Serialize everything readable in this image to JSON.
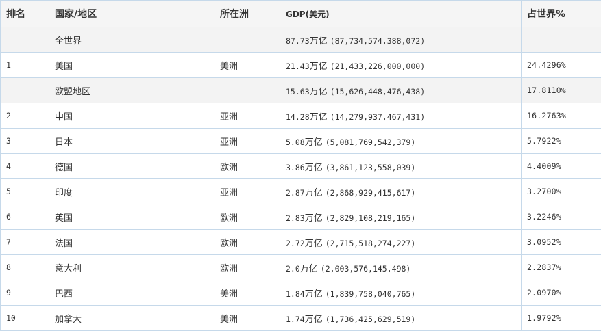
{
  "table": {
    "headers": {
      "rank": "排名",
      "country": "国家/地区",
      "continent": "所在洲",
      "gdp": "GDP(美元)",
      "share": "占世界%"
    },
    "rows": [
      {
        "rank": "",
        "country": "全世界",
        "continent": "",
        "gdp_short": "87.73",
        "gdp_unit": "万亿",
        "gdp_full": "(87,734,574,388,072)",
        "share": ""
      },
      {
        "rank": "1",
        "country": "美国",
        "continent": "美洲",
        "gdp_short": "21.43",
        "gdp_unit": "万亿",
        "gdp_full": "(21,433,226,000,000)",
        "share": "24.4296%"
      },
      {
        "rank": "",
        "country": "欧盟地区",
        "continent": "",
        "gdp_short": "15.63",
        "gdp_unit": "万亿",
        "gdp_full": "(15,626,448,476,438)",
        "share": "17.8110%"
      },
      {
        "rank": "2",
        "country": "中国",
        "continent": "亚洲",
        "gdp_short": "14.28",
        "gdp_unit": "万亿",
        "gdp_full": "(14,279,937,467,431)",
        "share": "16.2763%"
      },
      {
        "rank": "3",
        "country": "日本",
        "continent": "亚洲",
        "gdp_short": "5.08",
        "gdp_unit": "万亿",
        "gdp_full": "(5,081,769,542,379)",
        "share": "5.7922%"
      },
      {
        "rank": "4",
        "country": "德国",
        "continent": "欧洲",
        "gdp_short": "3.86",
        "gdp_unit": "万亿",
        "gdp_full": "(3,861,123,558,039)",
        "share": "4.4009%"
      },
      {
        "rank": "5",
        "country": "印度",
        "continent": "亚洲",
        "gdp_short": "2.87",
        "gdp_unit": "万亿",
        "gdp_full": "(2,868,929,415,617)",
        "share": "3.2700%"
      },
      {
        "rank": "6",
        "country": "英国",
        "continent": "欧洲",
        "gdp_short": "2.83",
        "gdp_unit": "万亿",
        "gdp_full": "(2,829,108,219,165)",
        "share": "3.2246%"
      },
      {
        "rank": "7",
        "country": "法国",
        "continent": "欧洲",
        "gdp_short": "2.72",
        "gdp_unit": "万亿",
        "gdp_full": "(2,715,518,274,227)",
        "share": "3.0952%"
      },
      {
        "rank": "8",
        "country": "意大利",
        "continent": "欧洲",
        "gdp_short": "2.0",
        "gdp_unit": "万亿",
        "gdp_full": "(2,003,576,145,498)",
        "share": "2.2837%"
      },
      {
        "rank": "9",
        "country": "巴西",
        "continent": "美洲",
        "gdp_short": "1.84",
        "gdp_unit": "万亿",
        "gdp_full": "(1,839,758,040,765)",
        "share": "2.0970%"
      },
      {
        "rank": "10",
        "country": "加拿大",
        "continent": "美洲",
        "gdp_short": "1.74",
        "gdp_unit": "万亿",
        "gdp_full": "(1,736,425,629,519)",
        "share": "1.9792%"
      }
    ],
    "shaded_rows": [
      0,
      2
    ]
  },
  "colors": {
    "border": "#c6d9ea",
    "header_bg": "#f5f5f5",
    "shaded_row_bg": "#f3f3f3",
    "text": "#333333"
  }
}
